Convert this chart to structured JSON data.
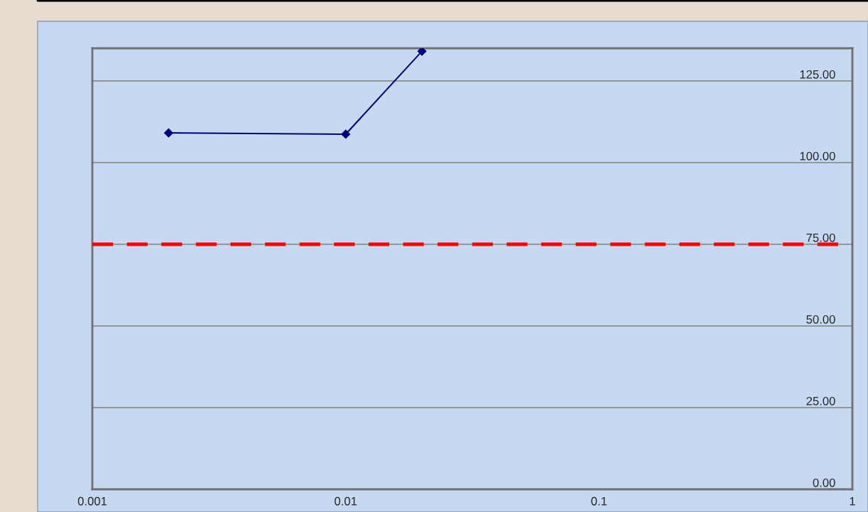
{
  "chart_data": {
    "type": "line",
    "x": [
      0.002,
      0.01,
      0.02
    ],
    "series": [
      {
        "color": "#000080",
        "values": [
          109.1,
          108.7,
          134.1
        ]
      }
    ],
    "log": "x",
    "xlim": [
      0.001,
      1
    ],
    "xticks": [
      0.001,
      0.01,
      0.1,
      1
    ],
    "ylim": [
      0,
      135
    ],
    "yticks": [
      {
        "value": 0,
        "label": "0.00"
      },
      {
        "value": 25,
        "label": "25.00"
      },
      {
        "value": 50,
        "label": "50.00"
      },
      {
        "value": 75,
        "label": "75.00"
      },
      {
        "value": 100,
        "label": "100.00"
      },
      {
        "value": 125,
        "label": "125.00"
      }
    ],
    "grid": "y",
    "marker": "diamond",
    "line_style": "solid",
    "legend": false,
    "ref_lines": [
      {
        "axis": "y",
        "value": 75,
        "color": "#ff0000",
        "line_style": "dashed"
      }
    ]
  }
}
